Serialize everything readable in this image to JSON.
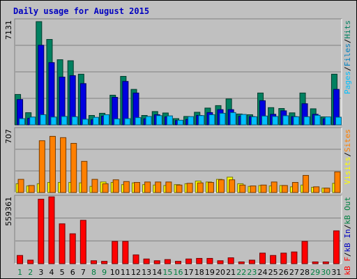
{
  "chart_data": {
    "type": "bar",
    "title": "Daily usage for August 2015",
    "categories": [
      "1",
      "2",
      "3",
      "4",
      "5",
      "6",
      "7",
      "8",
      "9",
      "10",
      "11",
      "12",
      "13",
      "14",
      "15",
      "16",
      "17",
      "18",
      "19",
      "20",
      "21",
      "22",
      "23",
      "24",
      "25",
      "26",
      "27",
      "28",
      "29",
      "30",
      "31"
    ],
    "weekend_days": [
      "1",
      "2",
      "8",
      "9",
      "15",
      "16",
      "22",
      "23",
      "29",
      "30"
    ],
    "day_label_colors": {
      "weekday": "#000000",
      "weekend": "#008040"
    },
    "panels": [
      {
        "id": "hits-files-pages",
        "ymax_label": "7131",
        "ylim": [
          0,
          7131
        ],
        "legend": [
          {
            "label": "Pages",
            "color": "#00c0ff"
          },
          {
            "sep": "/"
          },
          {
            "label": "Files",
            "color": "#0080c0"
          },
          {
            "sep": "/"
          },
          {
            "label": "Hits",
            "color": "#008060"
          }
        ],
        "series": [
          {
            "name": "Hits",
            "color": "#008060",
            "values": [
              2100,
              840,
              7131,
              5900,
              4500,
              4430,
              3500,
              650,
              800,
              2050,
              3350,
              2450,
              650,
              920,
              820,
              430,
              580,
              870,
              1160,
              1330,
              1790,
              750,
              700,
              2200,
              1190,
              1130,
              830,
              2200,
              1110,
              550,
              3500
            ]
          },
          {
            "name": "Files",
            "color": "#0000e0",
            "values": [
              1750,
              450,
              5500,
              4300,
              3300,
              3400,
              2850,
              350,
              600,
              1900,
              3000,
              2200,
              420,
              700,
              550,
              300,
              380,
              650,
              850,
              1050,
              1050,
              600,
              570,
              1670,
              730,
              970,
              570,
              1460,
              730,
              420,
              2450
            ]
          },
          {
            "name": "Pages",
            "color": "#00c0ff",
            "values": [
              430,
              540,
              700,
              540,
              580,
              560,
              390,
              520,
              700,
              410,
              430,
              500,
              580,
              640,
              620,
              320,
              570,
              640,
              700,
              800,
              850,
              720,
              560,
              610,
              580,
              630,
              560,
              560,
              660,
              550,
              530
            ]
          }
        ]
      },
      {
        "id": "visits-sites",
        "ymax_label": "707",
        "ylim": [
          0,
          707
        ],
        "legend": [
          {
            "label": "Visits",
            "color": "#ffff00"
          },
          {
            "sep": "/"
          },
          {
            "label": "Sites",
            "color": "#ff8000"
          }
        ],
        "series": [
          {
            "name": "Visits",
            "color": "#ffff00",
            "values": [
              100,
              75,
              100,
              115,
              115,
              115,
              110,
              70,
              120,
              115,
              90,
              110,
              90,
              85,
              80,
              90,
              100,
              130,
              120,
              150,
              175,
              100,
              70,
              80,
              75,
              80,
              65,
              85,
              60,
              50,
              105
            ]
          },
          {
            "name": "Sites",
            "color": "#ff8000",
            "values": [
              150,
              80,
              590,
              640,
              625,
              560,
              355,
              150,
              100,
              145,
              125,
              115,
              120,
              120,
              120,
              85,
              105,
              110,
              115,
              145,
              145,
              85,
              75,
              85,
              120,
              80,
              115,
              195,
              65,
              50,
              235
            ]
          }
        ]
      },
      {
        "id": "kbf-kbin-kbout",
        "ymax_label": "559361",
        "ylim": [
          0,
          559361
        ],
        "legend": [
          {
            "label": "kB F",
            "color": "#ff0000"
          },
          {
            "sep": "/"
          },
          {
            "label": "kB In",
            "color": "#0000c0"
          },
          {
            "sep": "/"
          },
          {
            "label": "kB Out",
            "color": "#008040"
          }
        ],
        "series": [
          {
            "name": "kB F",
            "color": "#ff0000",
            "values": [
              70000,
              30000,
              550000,
              570000,
              340000,
              255000,
              370000,
              25000,
              20000,
              190000,
              190000,
              75000,
              40000,
              25000,
              35000,
              20000,
              40000,
              45000,
              45000,
              25000,
              50000,
              15000,
              30000,
              90000,
              70000,
              90000,
              100000,
              190000,
              15000,
              15000,
              280000
            ]
          }
        ]
      }
    ]
  }
}
